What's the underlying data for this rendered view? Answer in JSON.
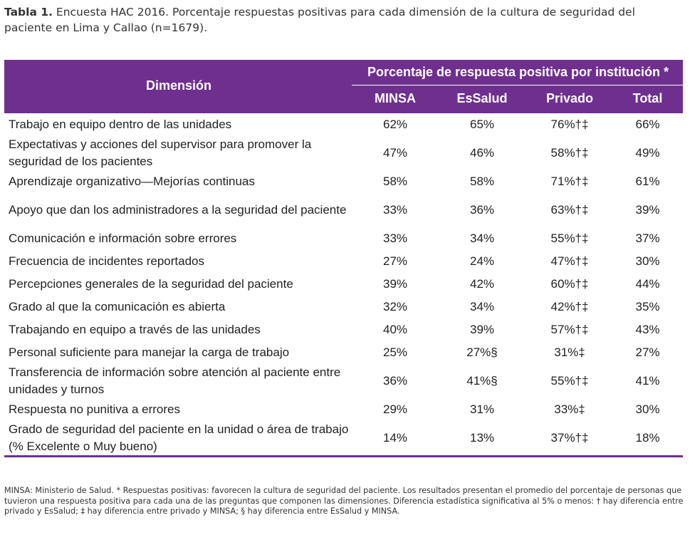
{
  "caption": {
    "label": "Tabla 1.",
    "text": " Encuesta HAC 2016. Porcentaje respuestas positivas para cada dimensión de la cultura de seguridad del paciente en Lima y Callao (n=1679)."
  },
  "table": {
    "header": {
      "dimension": "Dimensión",
      "group": "Porcentaje de respuesta positiva por institución *",
      "columns": [
        "MINSA",
        "EsSalud",
        "Privado",
        "Total"
      ]
    },
    "rows": [
      {
        "dimension": "Trabajo en equipo dentro de las unidades",
        "values": [
          "62%",
          "65%",
          "76%†‡",
          "66%"
        ]
      },
      {
        "dimension": "Expectativas y acciones del supervisor para promover la seguridad de los pacientes",
        "values": [
          "47%",
          "46%",
          "58%†‡",
          "49%"
        ]
      },
      {
        "dimension": "Aprendizaje organizativo—Mejorías continuas",
        "values": [
          "58%",
          "58%",
          "71%†‡",
          "61%"
        ]
      },
      {
        "dimension": "Apoyo que dan los administradores a la seguridad del paciente",
        "values": [
          "33%",
          "36%",
          "63%†‡",
          "39%"
        ]
      },
      {
        "dimension": "Comunicación e información sobre errores",
        "values": [
          "33%",
          "34%",
          "55%†‡",
          "37%"
        ]
      },
      {
        "dimension": "Frecuencia de incidentes reportados",
        "values": [
          "27%",
          "24%",
          "47%†‡",
          "30%"
        ]
      },
      {
        "dimension": "Percepciones generales de la seguridad del paciente",
        "values": [
          "39%",
          "42%",
          "60%†‡",
          "44%"
        ]
      },
      {
        "dimension": "Grado al que la comunicación es abierta",
        "values": [
          "32%",
          "34%",
          "42%†‡",
          "35%"
        ]
      },
      {
        "dimension": "Trabajando en equipo a través de las unidades",
        "values": [
          "40%",
          "39%",
          "57%†‡",
          "43%"
        ]
      },
      {
        "dimension": "Personal suficiente para manejar la carga de trabajo",
        "values": [
          "25%",
          "27%§",
          "31%‡",
          "27%"
        ]
      },
      {
        "dimension": "Transferencia de información sobre atención al paciente entre unidades y turnos",
        "values": [
          "36%",
          "41%§",
          "55%†‡",
          "41%"
        ]
      },
      {
        "dimension": "Respuesta no punitiva a errores",
        "values": [
          "29%",
          "31%",
          "33%‡",
          "30%"
        ]
      },
      {
        "dimension": "Grado de seguridad del paciente en la unidad o área de trabajo (% Excelente o Muy bueno)",
        "values": [
          "14%",
          "13%",
          "37%†‡",
          "18%"
        ]
      }
    ]
  },
  "footnote": "MINSA: Ministerio de Salud. * Respuestas positivas: favorecen la cultura de seguridad del paciente. Los resultados presentan el promedio del porcentaje de personas que tuvieron una respuesta positiva para cada una de las preguntas que componen las dimensiones. Diferencia estadística significativa al 5% o menos: † hay diferencia entre privado y EsSalud; ‡ hay diferencia entre privado y MINSA; § hay diferencia entre EsSalud y MINSA.",
  "colors": {
    "header_bg": "#6f2f8f",
    "header_text": "#ffffff"
  }
}
